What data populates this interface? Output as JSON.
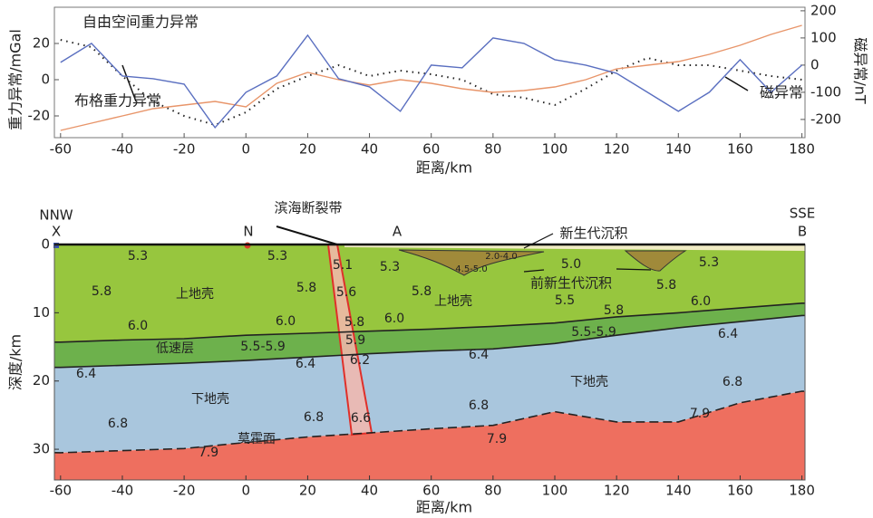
{
  "chart_data": [
    {
      "type": "line",
      "x_label": "距离/km",
      "y_label": "重力异常/mGal",
      "y2_label": "磁异常/nT",
      "x": [
        -60,
        -50,
        -40,
        -30,
        -20,
        -10,
        0,
        10,
        20,
        30,
        40,
        50,
        60,
        70,
        80,
        90,
        100,
        110,
        120,
        130,
        140,
        150,
        160,
        170,
        180
      ],
      "xlim": [
        -62,
        181
      ],
      "xticks": [
        -60,
        -40,
        -20,
        0,
        20,
        40,
        60,
        80,
        100,
        120,
        140,
        160,
        180
      ],
      "ylim": [
        -32,
        40
      ],
      "yticks": [
        -20,
        0,
        20
      ],
      "y2lim": [
        -267,
        213
      ],
      "y2ticks": [
        -200,
        -100,
        0,
        100,
        200
      ],
      "series": [
        {
          "name": "自由空间重力异常",
          "color": "#222222",
          "dash": true,
          "values": [
            22,
            18,
            2,
            -12,
            -20,
            -25,
            -18,
            -5,
            2,
            8,
            2,
            5,
            3,
            0,
            -8,
            -10,
            -14,
            -5,
            5,
            12,
            8,
            8,
            5,
            2,
            0
          ]
        },
        {
          "name": "布格重力异常",
          "color": "#e8956a",
          "dash": false,
          "values": [
            -28,
            -24,
            -20,
            -16,
            -14,
            -12,
            -15,
            -2,
            4,
            0,
            -3,
            0,
            -2,
            -5,
            -7,
            -6,
            -4,
            0,
            6,
            8,
            10,
            14,
            19,
            25,
            30
          ]
        },
        {
          "name": "磁异常",
          "color": "#5a6fc0",
          "dash": false,
          "axis": "y2",
          "values": [
            10,
            80,
            -40,
            -50,
            -70,
            -230,
            -100,
            -40,
            110,
            -50,
            -80,
            -170,
            0,
            -10,
            100,
            80,
            20,
            0,
            -30,
            -100,
            -170,
            -100,
            20,
            -100,
            0
          ]
        }
      ]
    },
    {
      "type": "section",
      "x_label": "距离/km",
      "y_label": "深度/km",
      "x": [
        -60,
        -40,
        -20,
        0,
        20,
        40,
        60,
        80,
        100,
        120,
        140,
        160,
        180
      ],
      "xlim": [
        -62,
        181
      ],
      "xticks": [
        -60,
        -40,
        -20,
        0,
        20,
        40,
        60,
        80,
        100,
        120,
        140,
        160,
        180
      ],
      "ylim": [
        0,
        34.5
      ],
      "yticks": [
        0,
        10,
        20,
        30
      ],
      "base_color": "#ee6f5f",
      "series": [
        {
          "color": "#97c63e",
          "values": [
            14.3,
            14,
            13.8,
            13.3,
            13,
            12.7,
            12.4,
            12,
            11.5,
            10.6,
            10,
            9.3,
            8.6
          ]
        },
        {
          "color": "#6db14c",
          "values": [
            18,
            17.7,
            17.4,
            17,
            16.5,
            16,
            15.6,
            15.3,
            14.5,
            13.3,
            12.2,
            11.3,
            10.4
          ]
        },
        {
          "name": "莫霍面",
          "color": "#a9c6dd",
          "values": [
            30.5,
            30.2,
            29.9,
            29,
            28.2,
            27.6,
            27,
            26.5,
            24.5,
            26,
            26,
            23.2,
            21.5
          ]
        }
      ],
      "labels": [
        "5.3",
        "5.8",
        "上地壳",
        "6.0",
        "低速层",
        "5.5-5.9",
        "6.4",
        "下地壳",
        "6.8",
        "莫霍面",
        "7.9",
        "5.3",
        "5.8",
        "6.0",
        "6.4",
        "6.8",
        "5.1",
        "5.6",
        "5.8",
        "5.9",
        "6.2",
        "6.6",
        "5.3",
        "5.8",
        "6.0",
        "上地壳",
        "6.4",
        "6.8",
        "7.9",
        "2.0-4.0",
        "4.5-5.0",
        "5.0",
        "5.5",
        "5.8",
        "5.5-5.9",
        "下地壳",
        "5.8",
        "5.3",
        "6.0",
        "6.4",
        "6.8",
        "7.9",
        "前新生代沉积",
        "新生代沉积",
        "滨海断裂带",
        "NNW",
        "X",
        "N",
        "A",
        "SSE",
        "B"
      ]
    }
  ]
}
